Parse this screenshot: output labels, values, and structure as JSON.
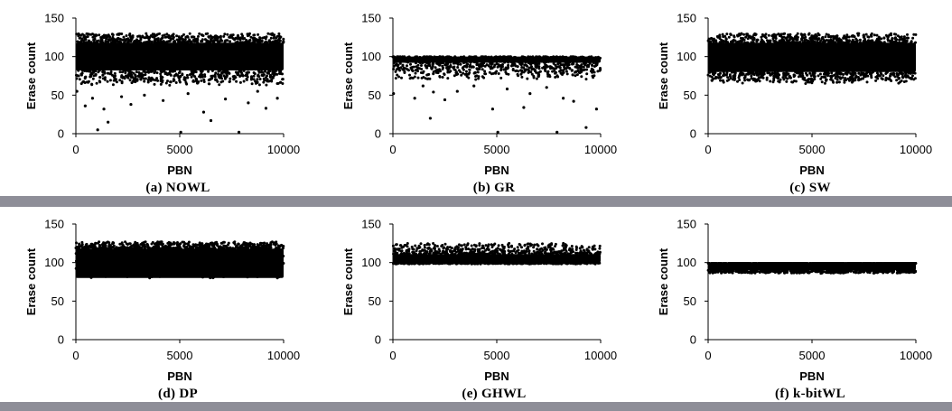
{
  "chart_data": [
    {
      "type": "scatter",
      "caption": "(a) NOWL",
      "xlabel": "PBN",
      "ylabel": "Erase count",
      "xlim": [
        0,
        10000
      ],
      "ylim": [
        0,
        150
      ],
      "xticks": [
        "0",
        "5000",
        "10000"
      ],
      "yticks": [
        "0",
        "50",
        "100",
        "150"
      ],
      "grid": false,
      "series": [
        {
          "band": {
            "x_range": [
              0,
              10000
            ],
            "y_range": [
              82,
              118
            ]
          },
          "spread": {
            "y_range": [
              62,
              130
            ]
          },
          "points": [
            {
              "x": 50,
              "y": 55
            },
            {
              "x": 450,
              "y": 36
            },
            {
              "x": 800,
              "y": 46
            },
            {
              "x": 1050,
              "y": 5
            },
            {
              "x": 1350,
              "y": 32
            },
            {
              "x": 1550,
              "y": 15
            },
            {
              "x": 2200,
              "y": 48
            },
            {
              "x": 2650,
              "y": 38
            },
            {
              "x": 3300,
              "y": 50
            },
            {
              "x": 4200,
              "y": 43
            },
            {
              "x": 5050,
              "y": 2
            },
            {
              "x": 5400,
              "y": 52
            },
            {
              "x": 6150,
              "y": 28
            },
            {
              "x": 6500,
              "y": 17
            },
            {
              "x": 7200,
              "y": 45
            },
            {
              "x": 7850,
              "y": 2
            },
            {
              "x": 8300,
              "y": 40
            },
            {
              "x": 8750,
              "y": 55
            },
            {
              "x": 9150,
              "y": 33
            },
            {
              "x": 9700,
              "y": 46
            }
          ]
        }
      ]
    },
    {
      "type": "scatter",
      "caption": "(b) GR",
      "xlabel": "PBN",
      "ylabel": "Erase count",
      "xlim": [
        0,
        10000
      ],
      "ylim": [
        0,
        150
      ],
      "xticks": [
        "0",
        "5000",
        "10000"
      ],
      "yticks": [
        "0",
        "50",
        "100",
        "150"
      ],
      "grid": false,
      "series": [
        {
          "band": {
            "x_range": [
              0,
              10000
            ],
            "y_range": [
              92,
              100
            ]
          },
          "spread": {
            "y_range": [
              70,
              92
            ]
          },
          "points": [
            {
              "x": 30,
              "y": 52
            },
            {
              "x": 1050,
              "y": 46
            },
            {
              "x": 1450,
              "y": 62
            },
            {
              "x": 1800,
              "y": 20
            },
            {
              "x": 1950,
              "y": 54
            },
            {
              "x": 2500,
              "y": 44
            },
            {
              "x": 3100,
              "y": 55
            },
            {
              "x": 3900,
              "y": 62
            },
            {
              "x": 4800,
              "y": 32
            },
            {
              "x": 5050,
              "y": 2
            },
            {
              "x": 5500,
              "y": 58
            },
            {
              "x": 6300,
              "y": 34
            },
            {
              "x": 6600,
              "y": 52
            },
            {
              "x": 7400,
              "y": 60
            },
            {
              "x": 7900,
              "y": 2
            },
            {
              "x": 8200,
              "y": 46
            },
            {
              "x": 8700,
              "y": 42
            },
            {
              "x": 9300,
              "y": 8
            },
            {
              "x": 9800,
              "y": 32
            }
          ]
        }
      ]
    },
    {
      "type": "scatter",
      "caption": "(c) SW",
      "xlabel": "PBN",
      "ylabel": "Erase count",
      "xlim": [
        0,
        10000
      ],
      "ylim": [
        0,
        150
      ],
      "xticks": [
        "0",
        "5000",
        "10000"
      ],
      "yticks": [
        "0",
        "50",
        "100",
        "150"
      ],
      "grid": false,
      "series": [
        {
          "band": {
            "x_range": [
              0,
              10000
            ],
            "y_range": [
              80,
              118
            ]
          },
          "spread": {
            "y_range": [
              65,
              130
            ]
          },
          "points": []
        }
      ]
    },
    {
      "type": "scatter",
      "caption": "(d) DP",
      "xlabel": "PBN",
      "ylabel": "Erase count",
      "xlim": [
        0,
        10000
      ],
      "ylim": [
        0,
        150
      ],
      "xticks": [
        "0",
        "5000",
        "10000"
      ],
      "yticks": [
        "0",
        "50",
        "100",
        "150"
      ],
      "grid": false,
      "series": [
        {
          "band": {
            "x_range": [
              0,
              10000
            ],
            "y_range": [
              80,
              118
            ]
          },
          "spread": {
            "y_range": [
              80,
              127
            ]
          },
          "points": []
        }
      ]
    },
    {
      "type": "scatter",
      "caption": "(e) GHWL",
      "xlabel": "PBN",
      "ylabel": "Erase count",
      "xlim": [
        0,
        10000
      ],
      "ylim": [
        0,
        150
      ],
      "xticks": [
        "0",
        "5000",
        "10000"
      ],
      "yticks": [
        "0",
        "50",
        "100",
        "150"
      ],
      "grid": false,
      "series": [
        {
          "band": {
            "x_range": [
              0,
              10000
            ],
            "y_range": [
              100,
              111
            ]
          },
          "spread": {
            "y_range": [
              98,
              125
            ]
          },
          "points": []
        }
      ]
    },
    {
      "type": "scatter",
      "caption": "(f) k-bitWL",
      "xlabel": "PBN",
      "ylabel": "Erase count",
      "xlim": [
        0,
        10000
      ],
      "ylim": [
        0,
        150
      ],
      "xticks": [
        "0",
        "5000",
        "10000"
      ],
      "yticks": [
        "0",
        "50",
        "100",
        "150"
      ],
      "grid": false,
      "series": [
        {
          "band": {
            "x_range": [
              0,
              10000
            ],
            "y_range": [
              90,
              99
            ]
          },
          "spread": {
            "y_range": [
              86,
              99
            ]
          },
          "points": []
        }
      ]
    }
  ],
  "colors": {
    "marker": "#000000",
    "divider": "#8e8e98",
    "background": "#ffffff"
  }
}
